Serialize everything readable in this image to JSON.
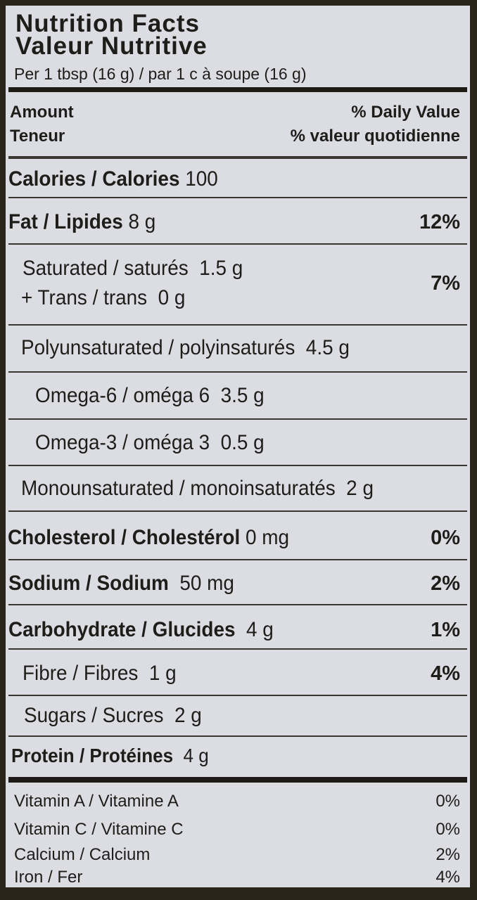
{
  "title_en": "Nutrition Facts",
  "title_fr": "Valeur Nutritive",
  "serving": "Per 1 tbsp (16 g) / par 1 c à soupe (16 g)",
  "header": {
    "amount": "Amount",
    "teneur": "Teneur",
    "dv": "% Daily Value",
    "dv_fr": "% valeur quotidienne"
  },
  "rows": [
    {
      "label": "Calories / Calories",
      "value": "100",
      "pct": ""
    },
    {
      "label": "Fat / Lipides",
      "value": "8 g",
      "pct": "12%"
    },
    {
      "label": "Saturated / saturés",
      "value": "1.5 g",
      "pct": "7%",
      "label2": "+ Trans / trans",
      "value2": "0 g"
    },
    {
      "label": "Polyunsaturated / polyinsaturés",
      "value": "4.5 g"
    },
    {
      "label": "Omega-6 / oméga 6",
      "value": "3.5 g"
    },
    {
      "label": "Omega-3 / oméga 3",
      "value": "0.5 g"
    },
    {
      "label": "Monounsaturated / monoinsaturatés",
      "value": "2 g"
    },
    {
      "label": "Cholesterol / Cholestérol",
      "value": "0 mg",
      "pct": "0%"
    },
    {
      "label": "Sodium / Sodium",
      "value": "50 mg",
      "pct": "2%"
    },
    {
      "label": "Carbohydrate / Glucides",
      "value": "4 g",
      "pct": "1%"
    },
    {
      "label": "Fibre / Fibres",
      "value": "1 g",
      "pct": "4%"
    },
    {
      "label": "Sugars / Sucres",
      "value": "2 g"
    },
    {
      "label": "Protein / Protéines",
      "value": "4 g"
    }
  ],
  "vitamins": [
    {
      "label": "Vitamin A / Vitamine A",
      "pct": "0%"
    },
    {
      "label": "Vitamin C / Vitamine C",
      "pct": "0%"
    },
    {
      "label": "Calcium / Calcium",
      "pct": "2%"
    },
    {
      "label": "Iron / Fer",
      "pct": "4%"
    }
  ],
  "colors": {
    "background": "#2b2419",
    "panel": "#dcdde2",
    "text": "#1f1d1a"
  }
}
